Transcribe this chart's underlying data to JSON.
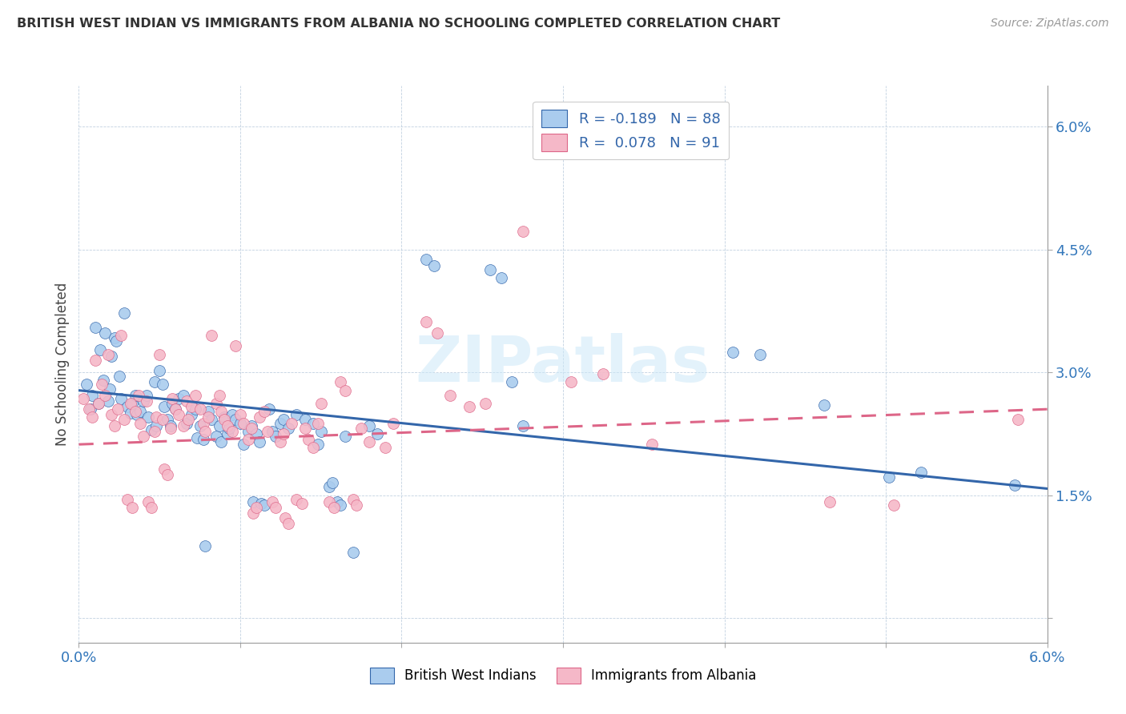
{
  "title": "BRITISH WEST INDIAN VS IMMIGRANTS FROM ALBANIA NO SCHOOLING COMPLETED CORRELATION CHART",
  "source": "Source: ZipAtlas.com",
  "ylabel": "No Schooling Completed",
  "color_blue": "#aaccee",
  "color_pink": "#f5b8c8",
  "line_blue": "#3366aa",
  "line_pink": "#dd6688",
  "watermark_text": "ZIPatlas",
  "xlim": [
    0.0,
    6.0
  ],
  "ylim": [
    -0.3,
    6.5
  ],
  "blue_line_x": [
    0.0,
    6.0
  ],
  "blue_line_y": [
    2.78,
    1.58
  ],
  "pink_line_x": [
    0.0,
    6.0
  ],
  "pink_line_y": [
    2.12,
    2.55
  ],
  "blue_scatter": [
    [
      0.05,
      2.85
    ],
    [
      0.07,
      2.55
    ],
    [
      0.08,
      2.72
    ],
    [
      0.1,
      3.55
    ],
    [
      0.12,
      2.62
    ],
    [
      0.13,
      3.28
    ],
    [
      0.15,
      2.9
    ],
    [
      0.16,
      3.48
    ],
    [
      0.18,
      2.65
    ],
    [
      0.19,
      2.8
    ],
    [
      0.2,
      3.2
    ],
    [
      0.22,
      3.42
    ],
    [
      0.23,
      3.38
    ],
    [
      0.25,
      2.95
    ],
    [
      0.26,
      2.68
    ],
    [
      0.28,
      3.72
    ],
    [
      0.3,
      2.58
    ],
    [
      0.32,
      2.5
    ],
    [
      0.33,
      2.62
    ],
    [
      0.35,
      2.72
    ],
    [
      0.36,
      2.48
    ],
    [
      0.38,
      2.52
    ],
    [
      0.4,
      2.65
    ],
    [
      0.42,
      2.72
    ],
    [
      0.43,
      2.45
    ],
    [
      0.45,
      2.3
    ],
    [
      0.47,
      2.88
    ],
    [
      0.48,
      2.35
    ],
    [
      0.5,
      3.02
    ],
    [
      0.52,
      2.85
    ],
    [
      0.53,
      2.58
    ],
    [
      0.55,
      2.42
    ],
    [
      0.57,
      2.35
    ],
    [
      0.58,
      2.62
    ],
    [
      0.6,
      2.55
    ],
    [
      0.62,
      2.68
    ],
    [
      0.65,
      2.72
    ],
    [
      0.67,
      2.38
    ],
    [
      0.7,
      2.48
    ],
    [
      0.72,
      2.55
    ],
    [
      0.73,
      2.2
    ],
    [
      0.75,
      2.35
    ],
    [
      0.77,
      2.18
    ],
    [
      0.78,
      0.88
    ],
    [
      0.8,
      2.52
    ],
    [
      0.82,
      2.42
    ],
    [
      0.85,
      2.22
    ],
    [
      0.87,
      2.35
    ],
    [
      0.88,
      2.15
    ],
    [
      0.9,
      2.45
    ],
    [
      0.92,
      2.25
    ],
    [
      0.93,
      2.32
    ],
    [
      0.95,
      2.48
    ],
    [
      0.97,
      2.42
    ],
    [
      1.0,
      2.38
    ],
    [
      1.02,
      2.12
    ],
    [
      1.05,
      2.28
    ],
    [
      1.07,
      2.35
    ],
    [
      1.08,
      1.42
    ],
    [
      1.1,
      2.25
    ],
    [
      1.12,
      2.15
    ],
    [
      1.13,
      1.4
    ],
    [
      1.15,
      1.38
    ],
    [
      1.18,
      2.55
    ],
    [
      1.2,
      2.28
    ],
    [
      1.22,
      2.22
    ],
    [
      1.25,
      2.38
    ],
    [
      1.27,
      2.42
    ],
    [
      1.3,
      2.32
    ],
    [
      1.35,
      2.48
    ],
    [
      1.4,
      2.42
    ],
    [
      1.45,
      2.38
    ],
    [
      1.48,
      2.12
    ],
    [
      1.5,
      2.28
    ],
    [
      1.55,
      1.6
    ],
    [
      1.57,
      1.65
    ],
    [
      1.6,
      1.42
    ],
    [
      1.62,
      1.38
    ],
    [
      1.65,
      2.22
    ],
    [
      1.7,
      0.8
    ],
    [
      1.8,
      2.35
    ],
    [
      1.85,
      2.25
    ],
    [
      2.15,
      4.38
    ],
    [
      2.2,
      4.3
    ],
    [
      2.55,
      4.25
    ],
    [
      2.62,
      4.15
    ],
    [
      2.68,
      2.88
    ],
    [
      2.75,
      2.35
    ],
    [
      3.52,
      5.88
    ],
    [
      4.05,
      3.25
    ],
    [
      4.22,
      3.22
    ],
    [
      4.62,
      2.6
    ],
    [
      5.02,
      1.72
    ],
    [
      5.22,
      1.78
    ],
    [
      5.8,
      1.62
    ]
  ],
  "pink_scatter": [
    [
      0.03,
      2.68
    ],
    [
      0.06,
      2.55
    ],
    [
      0.08,
      2.45
    ],
    [
      0.1,
      3.15
    ],
    [
      0.12,
      2.62
    ],
    [
      0.14,
      2.85
    ],
    [
      0.16,
      2.72
    ],
    [
      0.18,
      3.22
    ],
    [
      0.2,
      2.48
    ],
    [
      0.22,
      2.35
    ],
    [
      0.24,
      2.55
    ],
    [
      0.26,
      3.45
    ],
    [
      0.28,
      2.42
    ],
    [
      0.3,
      1.45
    ],
    [
      0.32,
      2.62
    ],
    [
      0.33,
      1.35
    ],
    [
      0.35,
      2.52
    ],
    [
      0.37,
      2.72
    ],
    [
      0.38,
      2.38
    ],
    [
      0.4,
      2.22
    ],
    [
      0.42,
      2.65
    ],
    [
      0.43,
      1.42
    ],
    [
      0.45,
      1.35
    ],
    [
      0.47,
      2.28
    ],
    [
      0.48,
      2.45
    ],
    [
      0.5,
      3.22
    ],
    [
      0.52,
      2.42
    ],
    [
      0.53,
      1.82
    ],
    [
      0.55,
      1.75
    ],
    [
      0.57,
      2.32
    ],
    [
      0.58,
      2.68
    ],
    [
      0.6,
      2.55
    ],
    [
      0.62,
      2.48
    ],
    [
      0.65,
      2.35
    ],
    [
      0.67,
      2.65
    ],
    [
      0.68,
      2.42
    ],
    [
      0.7,
      2.58
    ],
    [
      0.72,
      2.72
    ],
    [
      0.75,
      2.55
    ],
    [
      0.77,
      2.38
    ],
    [
      0.78,
      2.28
    ],
    [
      0.8,
      2.45
    ],
    [
      0.82,
      3.45
    ],
    [
      0.85,
      2.62
    ],
    [
      0.87,
      2.72
    ],
    [
      0.88,
      2.52
    ],
    [
      0.9,
      2.42
    ],
    [
      0.92,
      2.35
    ],
    [
      0.95,
      2.28
    ],
    [
      0.97,
      3.32
    ],
    [
      1.0,
      2.48
    ],
    [
      1.02,
      2.38
    ],
    [
      1.05,
      2.18
    ],
    [
      1.07,
      2.32
    ],
    [
      1.08,
      1.28
    ],
    [
      1.1,
      1.35
    ],
    [
      1.12,
      2.45
    ],
    [
      1.15,
      2.52
    ],
    [
      1.17,
      2.28
    ],
    [
      1.2,
      1.42
    ],
    [
      1.22,
      1.35
    ],
    [
      1.25,
      2.15
    ],
    [
      1.27,
      2.25
    ],
    [
      1.28,
      1.22
    ],
    [
      1.3,
      1.15
    ],
    [
      1.32,
      2.38
    ],
    [
      1.35,
      1.45
    ],
    [
      1.38,
      1.4
    ],
    [
      1.4,
      2.32
    ],
    [
      1.42,
      2.18
    ],
    [
      1.45,
      2.08
    ],
    [
      1.48,
      2.38
    ],
    [
      1.5,
      2.62
    ],
    [
      1.55,
      1.42
    ],
    [
      1.58,
      1.35
    ],
    [
      1.62,
      2.88
    ],
    [
      1.65,
      2.78
    ],
    [
      1.7,
      1.45
    ],
    [
      1.72,
      1.38
    ],
    [
      1.75,
      2.32
    ],
    [
      1.8,
      2.15
    ],
    [
      1.9,
      2.08
    ],
    [
      1.95,
      2.38
    ],
    [
      2.15,
      3.62
    ],
    [
      2.22,
      3.48
    ],
    [
      2.3,
      2.72
    ],
    [
      2.42,
      2.58
    ],
    [
      2.52,
      2.62
    ],
    [
      2.75,
      4.72
    ],
    [
      3.05,
      2.88
    ],
    [
      3.25,
      2.98
    ],
    [
      3.55,
      2.12
    ],
    [
      4.65,
      1.42
    ],
    [
      5.05,
      1.38
    ],
    [
      5.82,
      2.42
    ]
  ]
}
